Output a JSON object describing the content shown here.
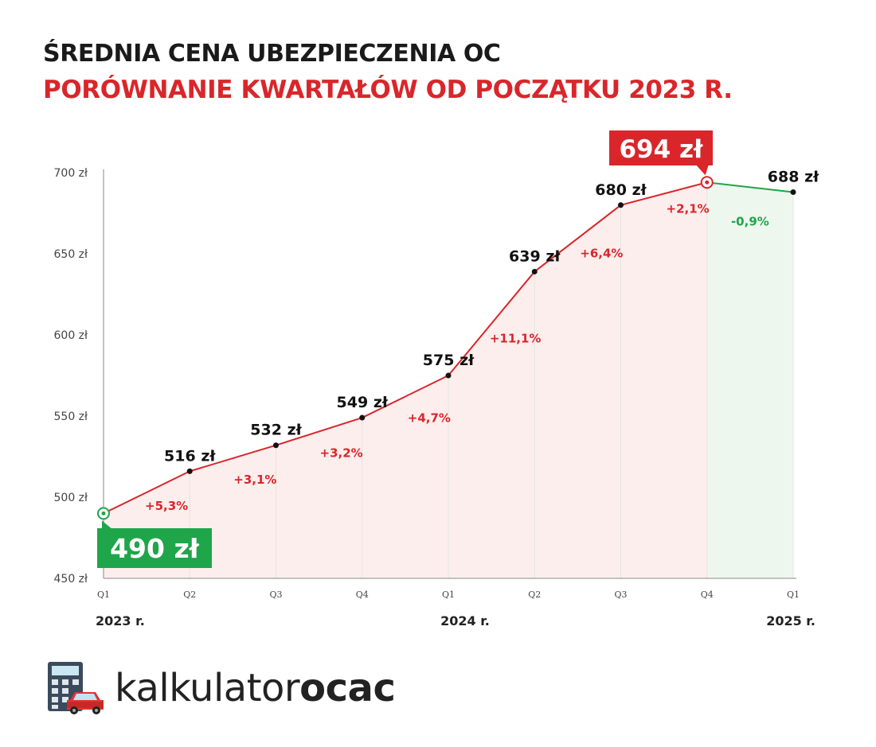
{
  "header": {
    "title": "ŚREDNIA CENA UBEZPIECZENIA OC",
    "subtitle": "PORÓWNANIE KWARTAŁÓW OD POCZĄTKU 2023 R."
  },
  "chart_data": {
    "type": "line",
    "title": "ŚREDNIA CENA UBEZPIECZENIA OC",
    "subtitle": "PORÓWNANIE KWARTAŁÓW OD POCZĄTKU 2023 R.",
    "categories": [
      "Q1",
      "Q2",
      "Q3",
      "Q4",
      "Q1",
      "Q2",
      "Q3",
      "Q4",
      "Q1"
    ],
    "year_labels": [
      {
        "index": 0,
        "label": "2023 r."
      },
      {
        "index": 4,
        "label": "2024 r."
      },
      {
        "index": 8,
        "label": "2025 r."
      }
    ],
    "series": [
      {
        "values": [
          490,
          516,
          532,
          549,
          575,
          639,
          680,
          694,
          688
        ],
        "value_labels": [
          "490 zł",
          "516 zł",
          "532 zł",
          "549 zł",
          "575 zł",
          "639 zł",
          "680 zł",
          "694 zł",
          "688 zł"
        ],
        "changes": [
          "+5,3%",
          "+3,1%",
          "+3,2%",
          "+4,7%",
          "+11,1%",
          "+6,4%",
          "+2,1%",
          "-0,9%"
        ]
      }
    ],
    "yticks": [
      450,
      500,
      550,
      600,
      650,
      700
    ],
    "ytick_labels": [
      "450 zł",
      "500 zł",
      "550 zł",
      "600 zł",
      "650 zł",
      "700 zł"
    ],
    "ylim": [
      450,
      700
    ],
    "highlight_min_index": 0,
    "highlight_max_index": 7,
    "grid": "vertical",
    "colors": {
      "rise": "#d9262b",
      "fall": "#1fa54a",
      "rise_fill": "#fdeeee",
      "fall_fill": "#eef7ee",
      "min_badge": "#1fa54a",
      "max_badge": "#d9262b",
      "axis": "#888888",
      "gridline": "#e4e4e4"
    }
  },
  "logo": {
    "text_light": "kalkulator",
    "text_bold": "ocac",
    "icon": "calculator-car-icon"
  }
}
